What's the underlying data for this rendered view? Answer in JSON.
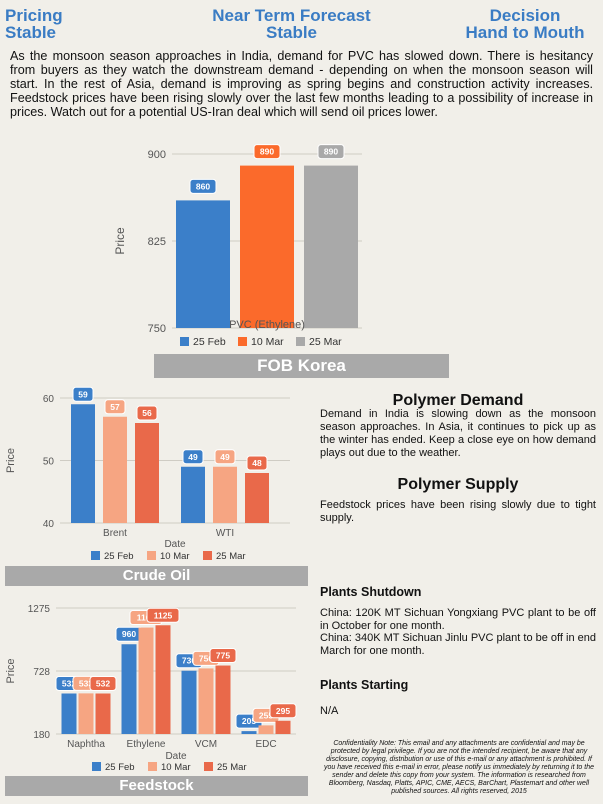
{
  "header": {
    "left_line1": "Pricing",
    "left_line2": "Stable",
    "center_line1": "Near Term Forecast",
    "center_line2": "Stable",
    "right_line1": "Decision",
    "right_line2": "Hand to Mouth"
  },
  "intro": "As the monsoon season approaches in India, demand for PVC has slowed down. There is hesitancy from buyers as they watch the downstream demand - depending on when the monsoon season will start. In the rest of Asia, demand is improving as spring begins and construction activity increases. Feedstock prices have been rising slowly over the last few months leading to a possibility of increase in prices. Watch out for a potential US-Iran deal which will send oil prices lower.",
  "fob_band": "FOB Korea",
  "crude_band": "Crude Oil",
  "feed_band": "Feedstock",
  "polymer_demand": {
    "title": "Polymer Demand",
    "text": "Demand in India is slowing down as the monsoon season approaches. In Asia, it continues to pick up as the winter has ended. Keep a close eye on how demand plays out due to the weather."
  },
  "polymer_supply": {
    "title": "Polymer Supply",
    "text": "Feedstock prices have been rising slowly due to tight supply."
  },
  "plants_shutdown": {
    "title": "Plants Shutdown",
    "line1": "China: 120K MT Sichuan Yongxiang PVC plant to be off in October for one month.",
    "line2": "China: 340K MT Sichuan Jinlu PVC plant to be off in end March for one month."
  },
  "plants_starting": {
    "title": "Plants Starting",
    "text": "N/A"
  },
  "confidentiality": "Confidentiality Note: This email and any attachments are confidential and may be protected by legal privilege. If you are not the intended recipient, be aware that any disclosure, copying, distribution or use of this e-mail or any attachment is prohibited. If you have received this e-mail in error, please notify us immediately by returning it to the sender and delete this copy from your system. The information is researched from Bloomberg, Nasdaq, Platts, APIC, CME, AECS, BarChart, Plastemart and other well published sources. All rights reserved, 2015",
  "colors": {
    "s1": "#3b7fc9",
    "s2": "#f6a582",
    "s3": "#e9694a",
    "fob2": "#fb6a2b",
    "fob3": "#a9a9a9",
    "header": "#3a7cc4",
    "band": "#a9a9a9"
  },
  "chart_data": [
    {
      "id": "fob",
      "type": "bar",
      "categories": [
        "PVC (Ethylene)"
      ],
      "series": [
        {
          "name": "25 Feb",
          "values": [
            860
          ]
        },
        {
          "name": "10 Mar",
          "values": [
            890
          ]
        },
        {
          "name": "25 Mar",
          "values": [
            890
          ]
        }
      ],
      "ylabel": "Price",
      "ylim": [
        750,
        900
      ],
      "yticks": [
        750,
        825,
        900
      ],
      "grid": true,
      "legend": "bottom"
    },
    {
      "id": "crude",
      "type": "bar",
      "categories": [
        "Brent",
        "WTI"
      ],
      "series": [
        {
          "name": "25 Feb",
          "values": [
            59,
            49
          ]
        },
        {
          "name": "10 Mar",
          "values": [
            57,
            49
          ]
        },
        {
          "name": "25 Mar",
          "values": [
            56,
            48
          ]
        }
      ],
      "xlabel": "Date",
      "ylabel": "Price",
      "ylim": [
        40,
        60
      ],
      "yticks": [
        40,
        50,
        60
      ],
      "grid": true,
      "legend": "bottom"
    },
    {
      "id": "feed",
      "type": "bar",
      "categories": [
        "Naphtha",
        "Ethylene",
        "VCM",
        "EDC"
      ],
      "series": [
        {
          "name": "25 Feb",
          "values": [
            532,
            960,
            730,
            205
          ]
        },
        {
          "name": "10 Mar",
          "values": [
            533,
            1105,
            750,
            255
          ]
        },
        {
          "name": "25 Mar",
          "values": [
            532,
            1125,
            775,
            295
          ]
        }
      ],
      "xlabel": "Date",
      "ylabel": "Price",
      "ylim": [
        180,
        1275
      ],
      "yticks": [
        180,
        728,
        1275
      ],
      "grid": true,
      "legend": "bottom"
    }
  ]
}
